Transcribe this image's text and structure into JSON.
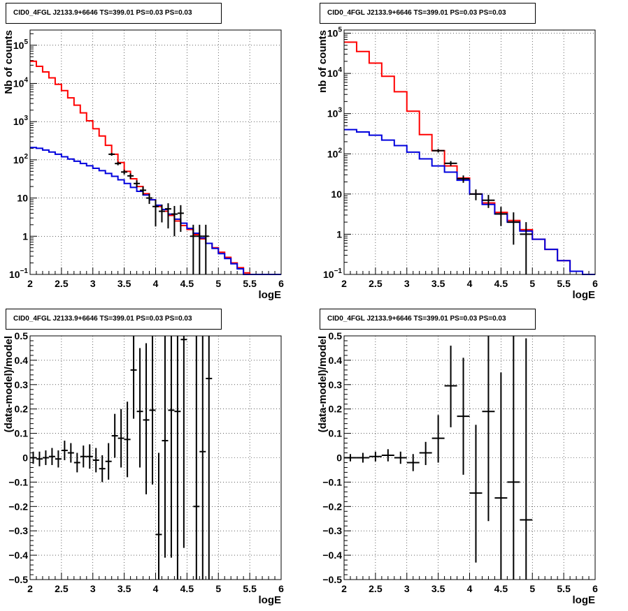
{
  "colors": {
    "total_model": "#ff0000",
    "source_model": "#0000dd",
    "data": "#000000"
  },
  "chart_data": [
    {
      "type": "line",
      "title": "CID0_4FGL J2133.9+6646 TS=399.01 PS=0.03 PS=0.03",
      "xlabel": "logE",
      "ylabel": "Nb of counts",
      "xlim": [
        2,
        6
      ],
      "ylim": [
        0.1,
        250000
      ],
      "log_y": true,
      "grid": true,
      "x_ticks": [
        "2",
        "2.5",
        "3",
        "3.5",
        "4",
        "4.5",
        "5",
        "5.5",
        "6"
      ],
      "y_ticks": [
        {
          "label": "10",
          "sup": "−1",
          "value": 0.1
        },
        {
          "label": "1",
          "sup": "",
          "value": 1
        },
        {
          "label": "10",
          "sup": "",
          "value": 10
        },
        {
          "label": "10",
          "sup": "2",
          "value": 100
        },
        {
          "label": "10",
          "sup": "3",
          "value": 1000
        },
        {
          "label": "10",
          "sup": "4",
          "value": 10000
        },
        {
          "label": "10",
          "sup": "5",
          "value": 100000
        }
      ],
      "bin_edges": [
        2.0,
        2.1,
        2.2,
        2.3,
        2.4,
        2.5,
        2.6,
        2.7,
        2.8,
        2.9,
        3.0,
        3.1,
        3.2,
        3.3,
        3.4,
        3.5,
        3.6,
        3.7,
        3.8,
        3.9,
        4.0,
        4.1,
        4.2,
        4.3,
        4.4,
        4.5,
        4.6,
        4.7,
        4.8,
        4.9,
        5.0,
        5.1,
        5.2,
        5.3,
        5.4,
        5.5,
        5.6,
        5.7,
        5.8,
        5.9,
        6.0
      ],
      "series": [
        {
          "role": "total_model",
          "values": [
            38000,
            28000,
            20000,
            14000,
            9500,
            6500,
            4200,
            2700,
            1700,
            1050,
            650,
            420,
            240,
            140,
            85,
            50,
            32,
            20,
            13,
            9,
            6,
            4.5,
            3.5,
            2.5,
            1.9,
            1.5,
            1.1,
            0.85,
            0.65,
            0.5,
            0.38,
            0.28,
            0.2,
            0.15,
            0.11,
            0.1,
            0.1,
            0.1,
            0.1,
            0.1
          ]
        },
        {
          "role": "source_model",
          "values": [
            210,
            200,
            180,
            160,
            140,
            120,
            105,
            92,
            80,
            70,
            60,
            52,
            44,
            37,
            30,
            24,
            19,
            15,
            12,
            9,
            6.5,
            5,
            3.8,
            2.8,
            2.2,
            1.6,
            1.2,
            0.9,
            0.65,
            0.48,
            0.35,
            0.26,
            0.19,
            0.14,
            0.1,
            0.1,
            0.1,
            0.1,
            0.1,
            0.1
          ]
        }
      ],
      "data_points": [
        {
          "x": 3.3,
          "y": 140,
          "xerr": 0.05,
          "lo": 128,
          "hi": 152
        },
        {
          "x": 3.4,
          "y": 80,
          "xerr": 0.05,
          "lo": 72,
          "hi": 89
        },
        {
          "x": 3.5,
          "y": 48,
          "xerr": 0.05,
          "lo": 41,
          "hi": 55
        },
        {
          "x": 3.6,
          "y": 38,
          "xerr": 0.05,
          "lo": 32,
          "hi": 44
        },
        {
          "x": 3.7,
          "y": 24,
          "xerr": 0.05,
          "lo": 19,
          "hi": 29
        },
        {
          "x": 3.8,
          "y": 16,
          "xerr": 0.05,
          "lo": 12,
          "hi": 20
        },
        {
          "x": 3.9,
          "y": 10,
          "xerr": 0.05,
          "lo": 7,
          "hi": 13
        },
        {
          "x": 4.0,
          "y": 6,
          "xerr": 0.05,
          "lo": 1.8,
          "hi": 9
        },
        {
          "x": 4.1,
          "y": 4.5,
          "xerr": 0.05,
          "lo": 2.3,
          "hi": 6.7
        },
        {
          "x": 4.2,
          "y": 5.2,
          "xerr": 0.05,
          "lo": 1.6,
          "hi": 7.3
        },
        {
          "x": 4.3,
          "y": 3.8,
          "xerr": 0.05,
          "lo": 1.0,
          "hi": 6.2
        },
        {
          "x": 4.4,
          "y": 4,
          "xerr": 0.05,
          "lo": 1.3,
          "hi": 6.5
        },
        {
          "x": 4.6,
          "y": 1,
          "xerr": 0.05,
          "lo": 0.1,
          "hi": 2
        },
        {
          "x": 4.7,
          "y": 1,
          "xerr": 0.05,
          "lo": 0.1,
          "hi": 2
        },
        {
          "x": 4.8,
          "y": 1,
          "xerr": 0.05,
          "lo": 0.1,
          "hi": 2
        }
      ]
    },
    {
      "type": "line",
      "title": "CID0_4FGL J2133.9+6646 TS=399.01 PS=0.03 PS=0.03",
      "xlabel": "logE",
      "ylabel": "nb of counts",
      "xlim": [
        2,
        6
      ],
      "ylim": [
        0.1,
        120000
      ],
      "log_y": true,
      "grid": true,
      "x_ticks": [
        "2",
        "2.5",
        "3",
        "3.5",
        "4",
        "4.5",
        "5",
        "5.5",
        "6"
      ],
      "y_ticks": [
        {
          "label": "10",
          "sup": "−1",
          "value": 0.1
        },
        {
          "label": "1",
          "sup": "",
          "value": 1
        },
        {
          "label": "10",
          "sup": "",
          "value": 10
        },
        {
          "label": "10",
          "sup": "2",
          "value": 100
        },
        {
          "label": "10",
          "sup": "3",
          "value": 1000
        },
        {
          "label": "10",
          "sup": "4",
          "value": 10000
        },
        {
          "label": "10",
          "sup": "5",
          "value": 100000
        }
      ],
      "bin_edges": [
        2.0,
        2.2,
        2.4,
        2.6,
        2.8,
        3.0,
        3.2,
        3.4,
        3.6,
        3.8,
        4.0,
        4.2,
        4.4,
        4.6,
        4.8,
        5.0,
        5.2,
        5.4,
        5.6,
        5.8,
        6.0
      ],
      "series": [
        {
          "role": "total_model",
          "values": [
            60000,
            35000,
            18000,
            8500,
            3500,
            1150,
            300,
            120,
            50,
            25,
            10,
            6,
            3.5,
            2.2,
            1.3,
            0.75,
            0.42,
            0.22,
            0.12,
            0.1
          ]
        },
        {
          "role": "source_model",
          "values": [
            400,
            350,
            290,
            220,
            160,
            110,
            75,
            50,
            35,
            22,
            10,
            5.5,
            3.2,
            2.0,
            1.2,
            0.75,
            0.42,
            0.22,
            0.12,
            0.1
          ]
        }
      ],
      "data_points": [
        {
          "x": 3.5,
          "y": 120,
          "xerr": 0.1,
          "lo": 108,
          "hi": 132
        },
        {
          "x": 3.7,
          "y": 58,
          "xerr": 0.1,
          "lo": 50,
          "hi": 66
        },
        {
          "x": 3.9,
          "y": 24,
          "xerr": 0.1,
          "lo": 19,
          "hi": 29
        },
        {
          "x": 4.1,
          "y": 10,
          "xerr": 0.1,
          "lo": 7,
          "hi": 13
        },
        {
          "x": 4.3,
          "y": 7,
          "xerr": 0.1,
          "lo": 4.5,
          "hi": 9.5
        },
        {
          "x": 4.5,
          "y": 3.2,
          "xerr": 0.1,
          "lo": 1.6,
          "hi": 4.8
        },
        {
          "x": 4.7,
          "y": 2,
          "xerr": 0.1,
          "lo": 0.55,
          "hi": 3.5
        },
        {
          "x": 4.9,
          "y": 1,
          "xerr": 0.1,
          "lo": 0.1,
          "hi": 2
        }
      ]
    },
    {
      "type": "scatter",
      "title": "CID0_4FGL J2133.9+6646 TS=399.01 PS=0.03 PS=0.03",
      "xlabel": "logE",
      "ylabel": "(data-model)/model",
      "xlim": [
        2,
        6
      ],
      "ylim": [
        -0.5,
        0.5
      ],
      "log_y": false,
      "grid": true,
      "x_ticks": [
        "2",
        "2.5",
        "3",
        "3.5",
        "4",
        "4.5",
        "5",
        "5.5",
        "6"
      ],
      "y_ticks": [
        {
          "label": "−0.5",
          "sup": "",
          "value": -0.5
        },
        {
          "label": "−0.4",
          "sup": "",
          "value": -0.4
        },
        {
          "label": "−0.3",
          "sup": "",
          "value": -0.3
        },
        {
          "label": "−0.2",
          "sup": "",
          "value": -0.2
        },
        {
          "label": "−0.1",
          "sup": "",
          "value": -0.1
        },
        {
          "label": "0",
          "sup": "",
          "value": 0
        },
        {
          "label": "0.1",
          "sup": "",
          "value": 0.1
        },
        {
          "label": "0.2",
          "sup": "",
          "value": 0.2
        },
        {
          "label": "0.3",
          "sup": "",
          "value": 0.3
        },
        {
          "label": "0.4",
          "sup": "",
          "value": 0.4
        },
        {
          "label": "0.5",
          "sup": "",
          "value": 0.5
        }
      ],
      "data_points": [
        {
          "x": 2.05,
          "y": 0.0,
          "xerr": 0.05,
          "lo": -0.025,
          "hi": 0.025
        },
        {
          "x": 2.15,
          "y": -0.005,
          "xerr": 0.05,
          "lo": -0.035,
          "hi": 0.025
        },
        {
          "x": 2.25,
          "y": 0.0,
          "xerr": 0.05,
          "lo": -0.03,
          "hi": 0.03
        },
        {
          "x": 2.35,
          "y": 0.005,
          "xerr": 0.05,
          "lo": -0.03,
          "hi": 0.04
        },
        {
          "x": 2.45,
          "y": -0.005,
          "xerr": 0.05,
          "lo": -0.04,
          "hi": 0.03
        },
        {
          "x": 2.55,
          "y": 0.03,
          "xerr": 0.05,
          "lo": -0.01,
          "hi": 0.07
        },
        {
          "x": 2.65,
          "y": 0.02,
          "xerr": 0.05,
          "lo": -0.02,
          "hi": 0.06
        },
        {
          "x": 2.75,
          "y": -0.02,
          "xerr": 0.05,
          "lo": -0.06,
          "hi": 0.02
        },
        {
          "x": 2.85,
          "y": 0.005,
          "xerr": 0.05,
          "lo": -0.04,
          "hi": 0.05
        },
        {
          "x": 2.95,
          "y": 0.005,
          "xerr": 0.05,
          "lo": -0.045,
          "hi": 0.055
        },
        {
          "x": 3.05,
          "y": -0.01,
          "xerr": 0.05,
          "lo": -0.06,
          "hi": 0.04
        },
        {
          "x": 3.15,
          "y": -0.045,
          "xerr": 0.05,
          "lo": -0.1,
          "hi": 0.01
        },
        {
          "x": 3.25,
          "y": -0.015,
          "xerr": 0.05,
          "lo": -0.09,
          "hi": 0.06
        },
        {
          "x": 3.35,
          "y": 0.09,
          "xerr": 0.05,
          "lo": 0.0,
          "hi": 0.18
        },
        {
          "x": 3.45,
          "y": 0.08,
          "xerr": 0.05,
          "lo": -0.04,
          "hi": 0.2
        },
        {
          "x": 3.55,
          "y": 0.075,
          "xerr": 0.05,
          "lo": -0.08,
          "hi": 0.23
        },
        {
          "x": 3.65,
          "y": 0.36,
          "xerr": 0.05,
          "lo": 0.16,
          "hi": 0.5
        },
        {
          "x": 3.75,
          "y": 0.19,
          "xerr": 0.05,
          "lo": -0.04,
          "hi": 0.45
        },
        {
          "x": 3.85,
          "y": 0.155,
          "xerr": 0.05,
          "lo": -0.15,
          "hi": 0.47
        },
        {
          "x": 3.95,
          "y": 0.195,
          "xerr": 0.05,
          "lo": -0.11,
          "hi": 0.5
        },
        {
          "x": 4.05,
          "y": -0.315,
          "xerr": 0.05,
          "lo": -0.5,
          "hi": 0.02
        },
        {
          "x": 4.15,
          "y": 0.07,
          "xerr": 0.05,
          "lo": -0.41,
          "hi": 0.5
        },
        {
          "x": 4.25,
          "y": 0.195,
          "xerr": 0.05,
          "lo": -0.41,
          "hi": 0.5
        },
        {
          "x": 4.35,
          "y": 0.19,
          "xerr": 0.05,
          "lo": -0.5,
          "hi": 0.5
        },
        {
          "x": 4.45,
          "y": 0.485,
          "xerr": 0.05,
          "lo": -0.37,
          "hi": 0.5
        },
        {
          "x": 4.65,
          "y": -0.2,
          "xerr": 0.05,
          "lo": -0.5,
          "hi": 0.5
        },
        {
          "x": 4.75,
          "y": 0.025,
          "xerr": 0.05,
          "lo": -0.5,
          "hi": 0.5
        },
        {
          "x": 4.85,
          "y": 0.325,
          "xerr": 0.05,
          "lo": -0.5,
          "hi": 0.5
        }
      ]
    },
    {
      "type": "scatter",
      "title": "CID0_4FGL J2133.9+6646 TS=399.01 PS=0.03 PS=0.03",
      "xlabel": "logE",
      "ylabel": "(data-model)/model",
      "xlim": [
        2,
        6
      ],
      "ylim": [
        -0.5,
        0.5
      ],
      "log_y": false,
      "grid": true,
      "x_ticks": [
        "2",
        "2.5",
        "3",
        "3.5",
        "4",
        "4.5",
        "5",
        "5.5",
        "6"
      ],
      "y_ticks": [
        {
          "label": "−0.5",
          "sup": "",
          "value": -0.5
        },
        {
          "label": "−0.4",
          "sup": "",
          "value": -0.4
        },
        {
          "label": "−0.3",
          "sup": "",
          "value": -0.3
        },
        {
          "label": "−0.2",
          "sup": "",
          "value": -0.2
        },
        {
          "label": "−0.1",
          "sup": "",
          "value": -0.1
        },
        {
          "label": "0",
          "sup": "",
          "value": 0
        },
        {
          "label": "0.1",
          "sup": "",
          "value": 0.1
        },
        {
          "label": "0.2",
          "sup": "",
          "value": 0.2
        },
        {
          "label": "0.3",
          "sup": "",
          "value": 0.3
        },
        {
          "label": "0.4",
          "sup": "",
          "value": 0.4
        },
        {
          "label": "0.5",
          "sup": "",
          "value": 0.5
        }
      ],
      "data_points": [
        {
          "x": 2.1,
          "y": 0.0,
          "xerr": 0.1,
          "lo": -0.015,
          "hi": 0.015
        },
        {
          "x": 2.3,
          "y": 0.0,
          "xerr": 0.1,
          "lo": -0.02,
          "hi": 0.02
        },
        {
          "x": 2.5,
          "y": 0.005,
          "xerr": 0.1,
          "lo": -0.015,
          "hi": 0.025
        },
        {
          "x": 2.7,
          "y": 0.01,
          "xerr": 0.1,
          "lo": -0.015,
          "hi": 0.035
        },
        {
          "x": 2.9,
          "y": 0.0,
          "xerr": 0.1,
          "lo": -0.025,
          "hi": 0.025
        },
        {
          "x": 3.1,
          "y": -0.02,
          "xerr": 0.1,
          "lo": -0.055,
          "hi": 0.015
        },
        {
          "x": 3.3,
          "y": 0.02,
          "xerr": 0.1,
          "lo": -0.03,
          "hi": 0.065
        },
        {
          "x": 3.5,
          "y": 0.08,
          "xerr": 0.1,
          "lo": -0.02,
          "hi": 0.175
        },
        {
          "x": 3.7,
          "y": 0.295,
          "xerr": 0.1,
          "lo": 0.125,
          "hi": 0.46
        },
        {
          "x": 3.9,
          "y": 0.17,
          "xerr": 0.1,
          "lo": -0.07,
          "hi": 0.41
        },
        {
          "x": 4.1,
          "y": -0.145,
          "xerr": 0.1,
          "lo": -0.43,
          "hi": 0.135
        },
        {
          "x": 4.3,
          "y": 0.19,
          "xerr": 0.1,
          "lo": -0.26,
          "hi": 0.5
        },
        {
          "x": 4.5,
          "y": -0.165,
          "xerr": 0.1,
          "lo": -0.5,
          "hi": 0.35
        },
        {
          "x": 4.7,
          "y": -0.1,
          "xerr": 0.1,
          "lo": -0.5,
          "hi": 0.5
        },
        {
          "x": 4.9,
          "y": -0.255,
          "xerr": 0.1,
          "lo": -0.5,
          "hi": 0.49
        }
      ]
    }
  ]
}
